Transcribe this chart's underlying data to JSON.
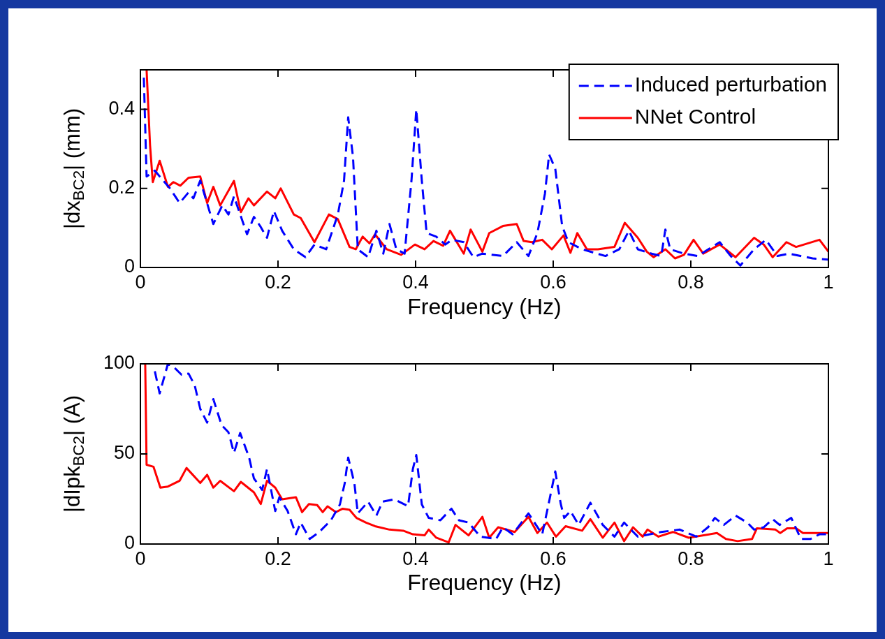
{
  "chart_data": [
    {
      "type": "line",
      "xlabel": "Frequency (Hz)",
      "ylabel": "|dx$_{BC2}$| (mm)",
      "xlim": [
        0,
        1
      ],
      "xticks": [
        0,
        0.2,
        0.4,
        0.6,
        0.8,
        1
      ],
      "ylim": [
        0,
        0.5
      ],
      "yticks": [
        0,
        0.2,
        0.4
      ],
      "grid": false,
      "legend": "top right",
      "series": [
        {
          "name": "Induced perturbation",
          "color": "#0000ff",
          "line_style": "dashed",
          "x": [
            0.005,
            0.009,
            0.021,
            0.033,
            0.043,
            0.057,
            0.07,
            0.077,
            0.087,
            0.106,
            0.119,
            0.128,
            0.136,
            0.155,
            0.165,
            0.174,
            0.184,
            0.194,
            0.206,
            0.223,
            0.24,
            0.253,
            0.27,
            0.287,
            0.296,
            0.302,
            0.309,
            0.316,
            0.331,
            0.343,
            0.353,
            0.362,
            0.372,
            0.384,
            0.394,
            0.401,
            0.409,
            0.416,
            0.43,
            0.443,
            0.453,
            0.47,
            0.484,
            0.497,
            0.527,
            0.547,
            0.564,
            0.577,
            0.588,
            0.594,
            0.603,
            0.613,
            0.622,
            0.642,
            0.676,
            0.696,
            0.71,
            0.723,
            0.743,
            0.757,
            0.763,
            0.77,
            0.79,
            0.81,
            0.842,
            0.858,
            0.872,
            0.892,
            0.909,
            0.926,
            0.943,
            0.977,
            1
          ],
          "values": [
            0.48,
            0.23,
            0.245,
            0.22,
            0.2,
            0.163,
            0.19,
            0.175,
            0.22,
            0.11,
            0.157,
            0.134,
            0.18,
            0.084,
            0.128,
            0.105,
            0.075,
            0.143,
            0.093,
            0.046,
            0.026,
            0.058,
            0.046,
            0.134,
            0.22,
            0.38,
            0.28,
            0.046,
            0.026,
            0.093,
            0.035,
            0.11,
            0.046,
            0.035,
            0.22,
            0.4,
            0.22,
            0.087,
            0.078,
            0.058,
            0.07,
            0.064,
            0.026,
            0.035,
            0.029,
            0.064,
            0.029,
            0.087,
            0.187,
            0.286,
            0.25,
            0.105,
            0.064,
            0.046,
            0.029,
            0.046,
            0.093,
            0.046,
            0.035,
            0.029,
            0.096,
            0.046,
            0.035,
            0.029,
            0.064,
            0.029,
            0.005,
            0.046,
            0.07,
            0.029,
            0.035,
            0.023,
            0.02
          ]
        },
        {
          "name": "NNet Control",
          "color": "#ff0000",
          "line_style": "solid",
          "x": [
            0.009,
            0.014,
            0.018,
            0.028,
            0.04,
            0.048,
            0.058,
            0.07,
            0.087,
            0.097,
            0.106,
            0.116,
            0.136,
            0.146,
            0.157,
            0.165,
            0.184,
            0.196,
            0.204,
            0.223,
            0.233,
            0.253,
            0.274,
            0.287,
            0.304,
            0.313,
            0.323,
            0.333,
            0.341,
            0.358,
            0.379,
            0.399,
            0.413,
            0.426,
            0.44,
            0.45,
            0.47,
            0.48,
            0.497,
            0.507,
            0.527,
            0.547,
            0.557,
            0.569,
            0.584,
            0.598,
            0.615,
            0.625,
            0.635,
            0.649,
            0.665,
            0.689,
            0.704,
            0.723,
            0.736,
            0.746,
            0.763,
            0.777,
            0.79,
            0.804,
            0.818,
            0.842,
            0.865,
            0.892,
            0.906,
            0.919,
            0.939,
            0.953,
            0.987,
            1
          ],
          "values": [
            0.5,
            0.31,
            0.216,
            0.27,
            0.204,
            0.216,
            0.207,
            0.227,
            0.23,
            0.163,
            0.204,
            0.157,
            0.219,
            0.14,
            0.175,
            0.157,
            0.192,
            0.175,
            0.2,
            0.134,
            0.125,
            0.064,
            0.134,
            0.122,
            0.052,
            0.046,
            0.078,
            0.061,
            0.084,
            0.046,
            0.032,
            0.058,
            0.046,
            0.067,
            0.055,
            0.093,
            0.035,
            0.096,
            0.04,
            0.087,
            0.105,
            0.11,
            0.067,
            0.064,
            0.07,
            0.046,
            0.081,
            0.037,
            0.087,
            0.046,
            0.046,
            0.052,
            0.113,
            0.075,
            0.04,
            0.026,
            0.046,
            0.023,
            0.032,
            0.07,
            0.035,
            0.058,
            0.026,
            0.075,
            0.058,
            0.026,
            0.064,
            0.052,
            0.07,
            0.04
          ]
        }
      ]
    },
    {
      "type": "line",
      "xlabel": "Frequency (Hz)",
      "ylabel": "|dIpk$_{BC2}$| (A)",
      "xlim": [
        0,
        1
      ],
      "xticks": [
        0,
        0.2,
        0.4,
        0.6,
        0.8,
        1
      ],
      "ylim": [
        0,
        100
      ],
      "yticks": [
        0,
        50,
        100
      ],
      "grid": false,
      "series": [
        {
          "color": "#0000ff",
          "line_style": "dashed",
          "x": [
            0.021,
            0.028,
            0.04,
            0.048,
            0.06,
            0.07,
            0.079,
            0.087,
            0.097,
            0.106,
            0.118,
            0.128,
            0.136,
            0.145,
            0.158,
            0.165,
            0.177,
            0.184,
            0.196,
            0.202,
            0.214,
            0.226,
            0.233,
            0.246,
            0.26,
            0.277,
            0.29,
            0.297,
            0.302,
            0.311,
            0.316,
            0.331,
            0.343,
            0.352,
            0.369,
            0.389,
            0.396,
            0.401,
            0.409,
            0.419,
            0.436,
            0.452,
            0.463,
            0.477,
            0.494,
            0.517,
            0.527,
            0.541,
            0.564,
            0.584,
            0.594,
            0.603,
            0.611,
            0.616,
            0.625,
            0.637,
            0.654,
            0.672,
            0.689,
            0.703,
            0.723,
            0.757,
            0.784,
            0.808,
            0.825,
            0.835,
            0.848,
            0.865,
            0.882,
            0.892,
            0.906,
            0.919,
            0.929,
            0.946,
            0.96,
            0.974,
            0.987,
            1
          ],
          "values": [
            95.9,
            83.6,
            100,
            98.4,
            93.9,
            94.6,
            88,
            75,
            67.4,
            80.4,
            66,
            62,
            50.6,
            61.6,
            48,
            36.4,
            30,
            41.6,
            18.3,
            26,
            18.3,
            5.4,
            11.9,
            2.8,
            6.7,
            13.2,
            22,
            33.8,
            48,
            33.8,
            17,
            23.5,
            15.8,
            23.5,
            24.8,
            21,
            41.6,
            49.4,
            22,
            14.5,
            13.2,
            19.6,
            13.2,
            11.9,
            4.1,
            2.8,
            9.3,
            5.4,
            17,
            5.4,
            23.5,
            40.3,
            22.2,
            14.5,
            18.3,
            10.6,
            22.9,
            10.6,
            4.1,
            11.9,
            4.1,
            6.7,
            8,
            4.1,
            9.3,
            14.5,
            10.6,
            15.8,
            11.9,
            8,
            9.3,
            13.8,
            10.6,
            14.5,
            2.8,
            2.8,
            5.4,
            5.4
          ]
        },
        {
          "color": "#ff0000",
          "line_style": "solid",
          "x": [
            0.007,
            0.009,
            0.019,
            0.029,
            0.04,
            0.057,
            0.067,
            0.087,
            0.097,
            0.106,
            0.116,
            0.136,
            0.146,
            0.165,
            0.175,
            0.184,
            0.196,
            0.206,
            0.226,
            0.235,
            0.245,
            0.257,
            0.265,
            0.272,
            0.284,
            0.294,
            0.304,
            0.314,
            0.328,
            0.341,
            0.362,
            0.382,
            0.396,
            0.413,
            0.419,
            0.43,
            0.448,
            0.458,
            0.477,
            0.497,
            0.507,
            0.52,
            0.544,
            0.564,
            0.577,
            0.591,
            0.604,
            0.618,
            0.642,
            0.654,
            0.672,
            0.689,
            0.703,
            0.716,
            0.73,
            0.737,
            0.753,
            0.774,
            0.797,
            0.838,
            0.851,
            0.868,
            0.889,
            0.896,
            0.923,
            0.93,
            0.94,
            0.953,
            0.963,
            0.98,
            1
          ],
          "values": [
            100,
            44,
            42.9,
            31.3,
            31.9,
            35.1,
            42.2,
            33.9,
            38.4,
            31.3,
            35.1,
            29.3,
            34.5,
            28.7,
            22.2,
            35.1,
            31.3,
            24.8,
            26,
            17.7,
            22.2,
            21.6,
            17.7,
            20.9,
            17.7,
            19.6,
            19,
            14.5,
            11.9,
            9.9,
            8,
            7.4,
            5.4,
            4.8,
            8,
            3.5,
            0.9,
            10.6,
            4.8,
            15.1,
            3.5,
            9.3,
            6.7,
            15.1,
            6.1,
            11.9,
            4.1,
            9.9,
            7.4,
            13.8,
            3.5,
            11.9,
            1.6,
            9.3,
            4.1,
            8,
            4.1,
            6.7,
            3.5,
            6.1,
            2.8,
            1.6,
            2.8,
            8.7,
            8,
            6.1,
            8.7,
            8.7,
            6.1,
            6.1,
            6.1
          ]
        }
      ]
    }
  ]
}
